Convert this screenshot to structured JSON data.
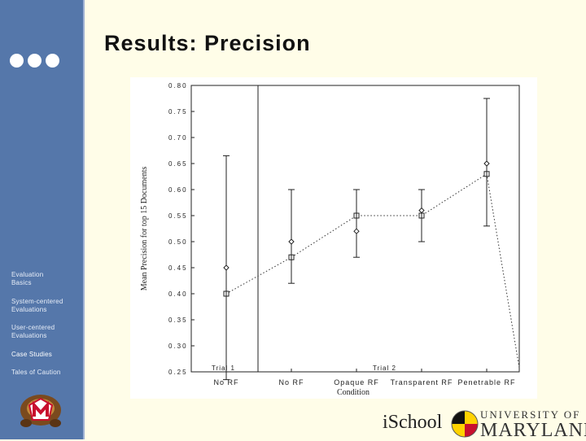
{
  "slide": {
    "title": "Results: Precision"
  },
  "sidebar": {
    "items": [
      {
        "label": "Evaluation Basics",
        "active": false
      },
      {
        "label": "System-centered Evaluations",
        "active": false
      },
      {
        "label": "User-centered Evaluations",
        "active": false
      },
      {
        "label": "Case Studies",
        "active": true
      },
      {
        "label": "Tales of Caution",
        "active": false
      }
    ]
  },
  "footer": {
    "ischool": "iSchool",
    "umd_top": "UNIVERSITY OF",
    "umd_bottom": "MARYLAND"
  },
  "colors": {
    "background": "#fffde8",
    "sidebar": "#5577aa",
    "chart_line": "#222222"
  },
  "chart_data": {
    "type": "line",
    "ylabel": "Mean Precision for top 15 Documents",
    "xlabel": "Condition",
    "ylim": [
      0.25,
      0.8
    ],
    "yticks": [
      "0.80",
      "0.75",
      "0.70",
      "0.65",
      "0.60",
      "0.55",
      "0.50",
      "0.45",
      "0.40",
      "0.35",
      "0.30",
      "0.25"
    ],
    "categories": [
      "No RF",
      "No RF",
      "Opaque RF",
      "Transparent RF",
      "Penetrable RF"
    ],
    "trials": [
      {
        "label": "Trial 1",
        "categories": [
          0
        ]
      },
      {
        "label": "Trial 2",
        "categories": [
          1,
          2,
          3,
          4
        ]
      }
    ],
    "error_bars": [
      {
        "mean": 0.45,
        "low": 0.235,
        "high": 0.665
      },
      {
        "mean": 0.5,
        "low": 0.42,
        "high": 0.6
      },
      {
        "mean": 0.52,
        "low": 0.47,
        "high": 0.6
      },
      {
        "mean": 0.56,
        "low": 0.5,
        "high": 0.6
      },
      {
        "mean": 0.65,
        "low": 0.53,
        "high": 0.775
      }
    ],
    "fit_series": {
      "values": [
        0.4,
        0.47,
        0.55,
        0.55,
        0.63
      ],
      "style": "dotted"
    },
    "grid": false
  }
}
